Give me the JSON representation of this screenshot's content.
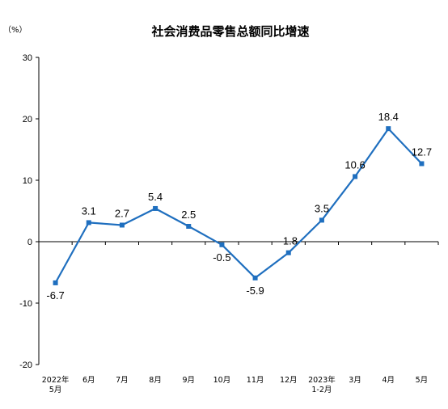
{
  "chart_data": {
    "type": "line",
    "title": "社会消费品零售总额同比增速",
    "unit_label": "（%）",
    "xlabel": "",
    "ylabel": "",
    "ylim": [
      -20,
      30
    ],
    "y_ticks": [
      {
        "value": 30,
        "label": "30"
      },
      {
        "value": 20,
        "label": "20"
      },
      {
        "value": 10,
        "label": "10"
      },
      {
        "value": 0,
        "label": "0"
      },
      {
        "value": -10,
        "label": "-10"
      },
      {
        "value": -20,
        "label": "-20"
      }
    ],
    "grid": false,
    "legend": "none",
    "categories": [
      [
        "2022年",
        "5月"
      ],
      [
        "6月"
      ],
      [
        "7月"
      ],
      [
        "8月"
      ],
      [
        "9月"
      ],
      [
        "10月"
      ],
      [
        "11月"
      ],
      [
        "12月"
      ],
      [
        "2023年",
        "1-2月"
      ],
      [
        "3月"
      ],
      [
        "4月"
      ],
      [
        "5月"
      ]
    ],
    "series": [
      {
        "color": "#1f6fbf",
        "values": [
          -6.7,
          3.1,
          2.7,
          5.4,
          2.5,
          -0.5,
          -5.9,
          -1.8,
          3.5,
          10.6,
          18.4,
          12.7
        ],
        "labels": [
          "-6.7",
          "3.1",
          "2.7",
          "5.4",
          "2.5",
          "-0.5",
          "-5.9",
          "-1.8",
          "3.5",
          "10.6",
          "18.4",
          "12.7"
        ]
      }
    ]
  }
}
